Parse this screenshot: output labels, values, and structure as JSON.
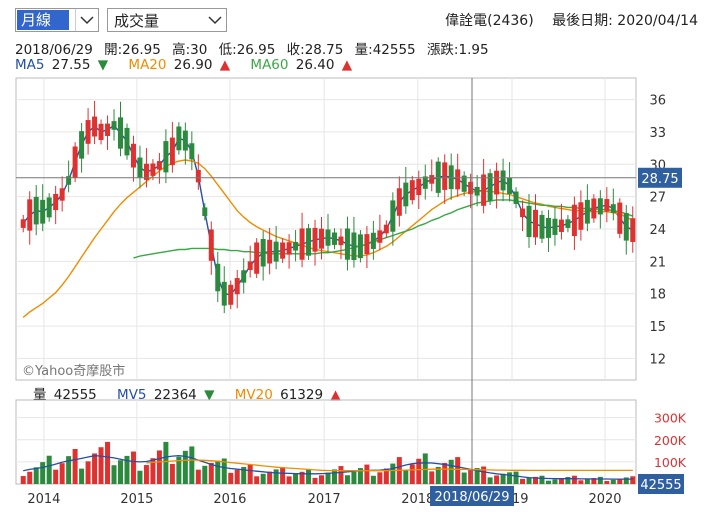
{
  "toolbar": {
    "period_value": "月線",
    "indicator_value": "成交量",
    "stock_name": "偉詮電(2436)",
    "last_date_label": "最後日期: 2020/04/14"
  },
  "info": {
    "date": "2018/06/29",
    "open": "開:26.95",
    "high": "高:30",
    "low": "低:26.95",
    "close": "收:28.75",
    "volume": "量:42555",
    "change": "漲跌:1.95"
  },
  "ma_legend": {
    "ma5_label": "MA5",
    "ma5_value": "27.55",
    "ma5_dir": "▼",
    "ma20_label": "MA20",
    "ma20_value": "26.90",
    "ma20_dir": "▲",
    "ma60_label": "MA60",
    "ma60_value": "26.40",
    "ma60_dir": "▲"
  },
  "mv_legend": {
    "vol_label": "量",
    "vol_value": "42555",
    "mv5_label": "MV5",
    "mv5_value": "22364",
    "mv5_dir": "▼",
    "mv20_label": "MV20",
    "mv20_value": "61329",
    "mv20_dir": "▲"
  },
  "watermark": "©Yahoo奇摩股市",
  "cursor": {
    "price_tag": "28.75",
    "date_tag": "2018/06/29",
    "volume_tag": "42555"
  },
  "colors": {
    "up": "#e03131",
    "down": "#2b8a3e",
    "ma5": "#2350a8",
    "ma20": "#f08c00",
    "ma60": "#3aa845",
    "accent": "#2f5f9e",
    "vol_line": "#2350a8"
  },
  "chart_data": [
    {
      "type": "candlestick",
      "title": "",
      "ylim": [
        10,
        38
      ],
      "y_ticks": [
        12,
        15,
        18,
        21,
        24,
        27,
        30,
        33,
        36
      ],
      "x_tick_labels": [
        "2014",
        "2015",
        "2016",
        "2017",
        "2018",
        "2019",
        "2020"
      ],
      "series": [
        {
          "name": "MA5",
          "values": [
            24.5,
            25.3,
            25.7,
            25.6,
            26.0,
            26.5,
            27.2,
            28.5,
            30.2,
            31.8,
            33.0,
            33.5,
            33.0,
            33.2,
            33.6,
            32.9,
            32.1,
            30.8,
            29.7,
            29.3,
            29.5,
            29.9,
            30.7,
            31.2,
            32.4,
            32.2,
            31.2,
            28.9,
            25.6,
            22.5,
            19.5,
            18.0,
            17.9,
            18.7,
            19.6,
            20.6,
            21.3,
            21.8,
            21.9,
            21.9,
            22.0,
            22.2,
            22.4,
            22.6,
            22.8,
            23.0,
            23.1,
            23.2,
            23.1,
            22.9,
            22.6,
            22.4,
            22.4,
            22.6,
            22.9,
            23.3,
            24.0,
            25.2,
            26.5,
            27.2,
            27.6,
            27.9,
            28.3,
            28.6,
            28.8,
            28.9,
            28.8,
            28.6,
            28.2,
            27.8,
            27.5,
            27.6,
            27.9,
            28.3,
            28.5,
            28.0,
            26.9,
            25.5,
            24.7,
            24.5,
            24.2,
            24.1,
            24.2,
            24.3,
            24.5,
            24.8,
            25.2,
            25.6,
            25.9,
            26.1,
            26.2,
            25.9,
            25.0,
            24.2,
            23.9
          ]
        },
        {
          "name": "MA20",
          "values": [
            15.8,
            16.3,
            16.7,
            17.1,
            17.6,
            18.1,
            18.8,
            19.6,
            20.5,
            21.4,
            22.3,
            23.2,
            24.0,
            24.8,
            25.6,
            26.3,
            26.9,
            27.4,
            27.9,
            28.4,
            28.9,
            29.4,
            29.8,
            30.1,
            30.3,
            30.4,
            30.3,
            30.1,
            29.6,
            28.9,
            28.1,
            27.3,
            26.5,
            25.7,
            25.1,
            24.6,
            24.2,
            23.9,
            23.6,
            23.3,
            23.1,
            22.9,
            22.7,
            22.5,
            22.3,
            22.1,
            22.0,
            21.9,
            21.8,
            21.7,
            21.6,
            21.5,
            21.5,
            21.6,
            21.8,
            22.1,
            22.4,
            22.8,
            23.3,
            23.8,
            24.3,
            24.8,
            25.3,
            25.8,
            26.2,
            26.6,
            26.9,
            27.1,
            27.3,
            27.4,
            27.5,
            27.5,
            27.5,
            27.4,
            27.3,
            27.2,
            27.0,
            26.8,
            26.6,
            26.4,
            26.3,
            26.1,
            26.0,
            25.9,
            25.8,
            25.7,
            25.7,
            25.6,
            25.6,
            25.6,
            25.6,
            25.5,
            25.4,
            25.1,
            24.8
          ]
        },
        {
          "name": "MA60",
          "values": [
            null,
            null,
            null,
            null,
            null,
            null,
            null,
            null,
            null,
            null,
            null,
            null,
            null,
            null,
            null,
            null,
            null,
            21.3,
            21.5,
            21.6,
            21.7,
            21.8,
            21.9,
            22.0,
            22.1,
            22.1,
            22.2,
            22.2,
            22.2,
            22.2,
            22.1,
            22.1,
            22.0,
            22.0,
            21.9,
            21.9,
            21.8,
            21.8,
            21.7,
            21.7,
            21.7,
            21.7,
            21.7,
            21.7,
            21.7,
            21.7,
            21.8,
            21.8,
            21.9,
            22.0,
            22.1,
            22.3,
            22.4,
            22.6,
            22.8,
            23.0,
            23.2,
            23.4,
            23.6,
            23.8,
            24.0,
            24.3,
            24.5,
            24.8,
            25.0,
            25.3,
            25.5,
            25.8,
            26.0,
            26.2,
            26.4,
            26.5,
            26.6,
            26.7,
            26.7,
            26.7,
            26.6,
            26.5,
            26.4,
            26.3,
            26.2,
            26.2,
            26.1,
            26.1,
            26.0,
            26.0,
            25.9,
            25.9,
            25.9,
            25.8,
            25.8,
            25.7,
            25.6,
            25.4,
            25.2
          ]
        }
      ]
    },
    {
      "type": "bar",
      "title": "",
      "ylim": [
        0,
        380000
      ],
      "y_tick_labels": [
        "100K",
        "200K",
        "300K"
      ],
      "y_ticks": [
        100000,
        200000,
        300000
      ],
      "series": [
        {
          "name": "MV5",
          "values": [
            60000,
            66000,
            70000,
            75000,
            82000,
            90000,
            98000,
            105000,
            110000,
            116000,
            122000,
            128000,
            126000,
            122000,
            118000,
            112000,
            106000,
            102000,
            100000,
            102000,
            108000,
            115000,
            122000,
            126000,
            128000,
            125000,
            118000,
            108000,
            98000,
            88000,
            80000,
            74000,
            70000,
            67000,
            64000,
            61000,
            58000,
            55000,
            52000,
            50000,
            49000,
            48000,
            47000,
            46000,
            46000,
            46000,
            47000,
            48000,
            50000,
            52000,
            55000,
            58000,
            60000,
            61000,
            62000,
            63000,
            65000,
            70000,
            78000,
            86000,
            92000,
            95000,
            96000,
            95000,
            92000,
            88000,
            83000,
            78000,
            72000,
            66000,
            60000,
            55000,
            50000,
            46000,
            43000,
            40000,
            36000,
            32000,
            29000,
            27000,
            26000,
            25000,
            24000,
            24000,
            24000,
            24000,
            23000,
            23000,
            22500,
            22400,
            22400,
            22364,
            22364,
            22364,
            22364
          ]
        },
        {
          "name": "MV20",
          "values": [
            null,
            null,
            null,
            null,
            null,
            null,
            null,
            null,
            null,
            null,
            null,
            null,
            null,
            null,
            null,
            null,
            null,
            null,
            null,
            96000,
            98000,
            100000,
            102000,
            104000,
            106000,
            107000,
            108000,
            108000,
            107000,
            105000,
            103000,
            100000,
            97000,
            94000,
            91000,
            88000,
            85000,
            82000,
            79000,
            76000,
            74000,
            72000,
            70000,
            68000,
            66000,
            64000,
            62000,
            61000,
            60000,
            60000,
            60000,
            60000,
            60000,
            60000,
            60000,
            60000,
            60000,
            61000,
            62000,
            63000,
            64000,
            65000,
            66000,
            67000,
            67000,
            67000,
            67000,
            66000,
            66000,
            65000,
            65000,
            64000,
            64000,
            63000,
            63000,
            62000,
            62000,
            62000,
            61500,
            61400,
            61350,
            61330,
            61329,
            61329,
            61329,
            61329,
            61329,
            61329,
            61329,
            61329,
            61329,
            61329,
            61329,
            61329,
            61329
          ]
        }
      ]
    }
  ]
}
